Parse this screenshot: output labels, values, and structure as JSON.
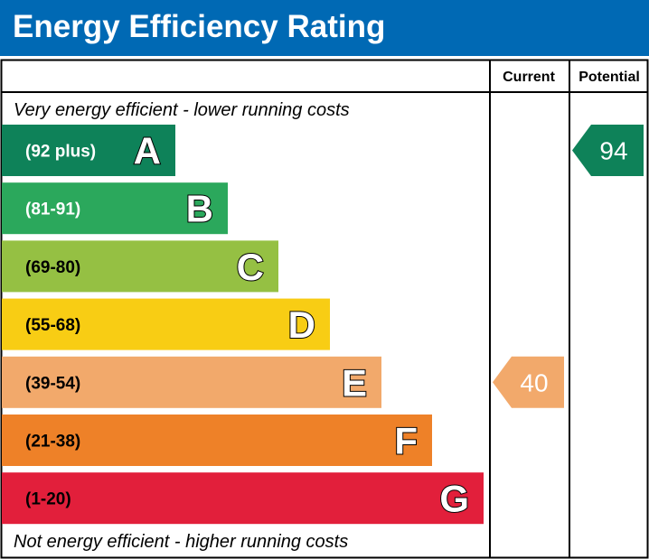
{
  "title": "Energy Efficiency Rating",
  "columns": {
    "current": "Current",
    "potential": "Potential"
  },
  "top_note": "Very energy efficient - lower running costs",
  "bottom_note": "Not energy efficient - higher running costs",
  "colors": {
    "header": "#0069b4",
    "band_text": "#ffffff",
    "grid": "#000000"
  },
  "bands": [
    {
      "letter": "A",
      "range": "(92 plus)",
      "color": "#0e8259",
      "range_color": "#ffffff"
    },
    {
      "letter": "B",
      "range": "(81-91)",
      "color": "#2ba85c",
      "range_color": "#ffffff"
    },
    {
      "letter": "C",
      "range": "(69-80)",
      "color": "#95c043",
      "range_color": "#000000"
    },
    {
      "letter": "D",
      "range": "(55-68)",
      "color": "#f8cd14",
      "range_color": "#000000"
    },
    {
      "letter": "E",
      "range": "(39-54)",
      "color": "#f2a96b",
      "range_color": "#000000"
    },
    {
      "letter": "F",
      "range": "(21-38)",
      "color": "#ee8128",
      "range_color": "#000000"
    },
    {
      "letter": "G",
      "range": "(1-20)",
      "color": "#e21f3b",
      "range_color": "#000000"
    }
  ],
  "ratings": {
    "current": {
      "value": "40",
      "band": "E",
      "color": "#f2a96b"
    },
    "potential": {
      "value": "94",
      "band": "A",
      "color": "#0e8259"
    }
  }
}
